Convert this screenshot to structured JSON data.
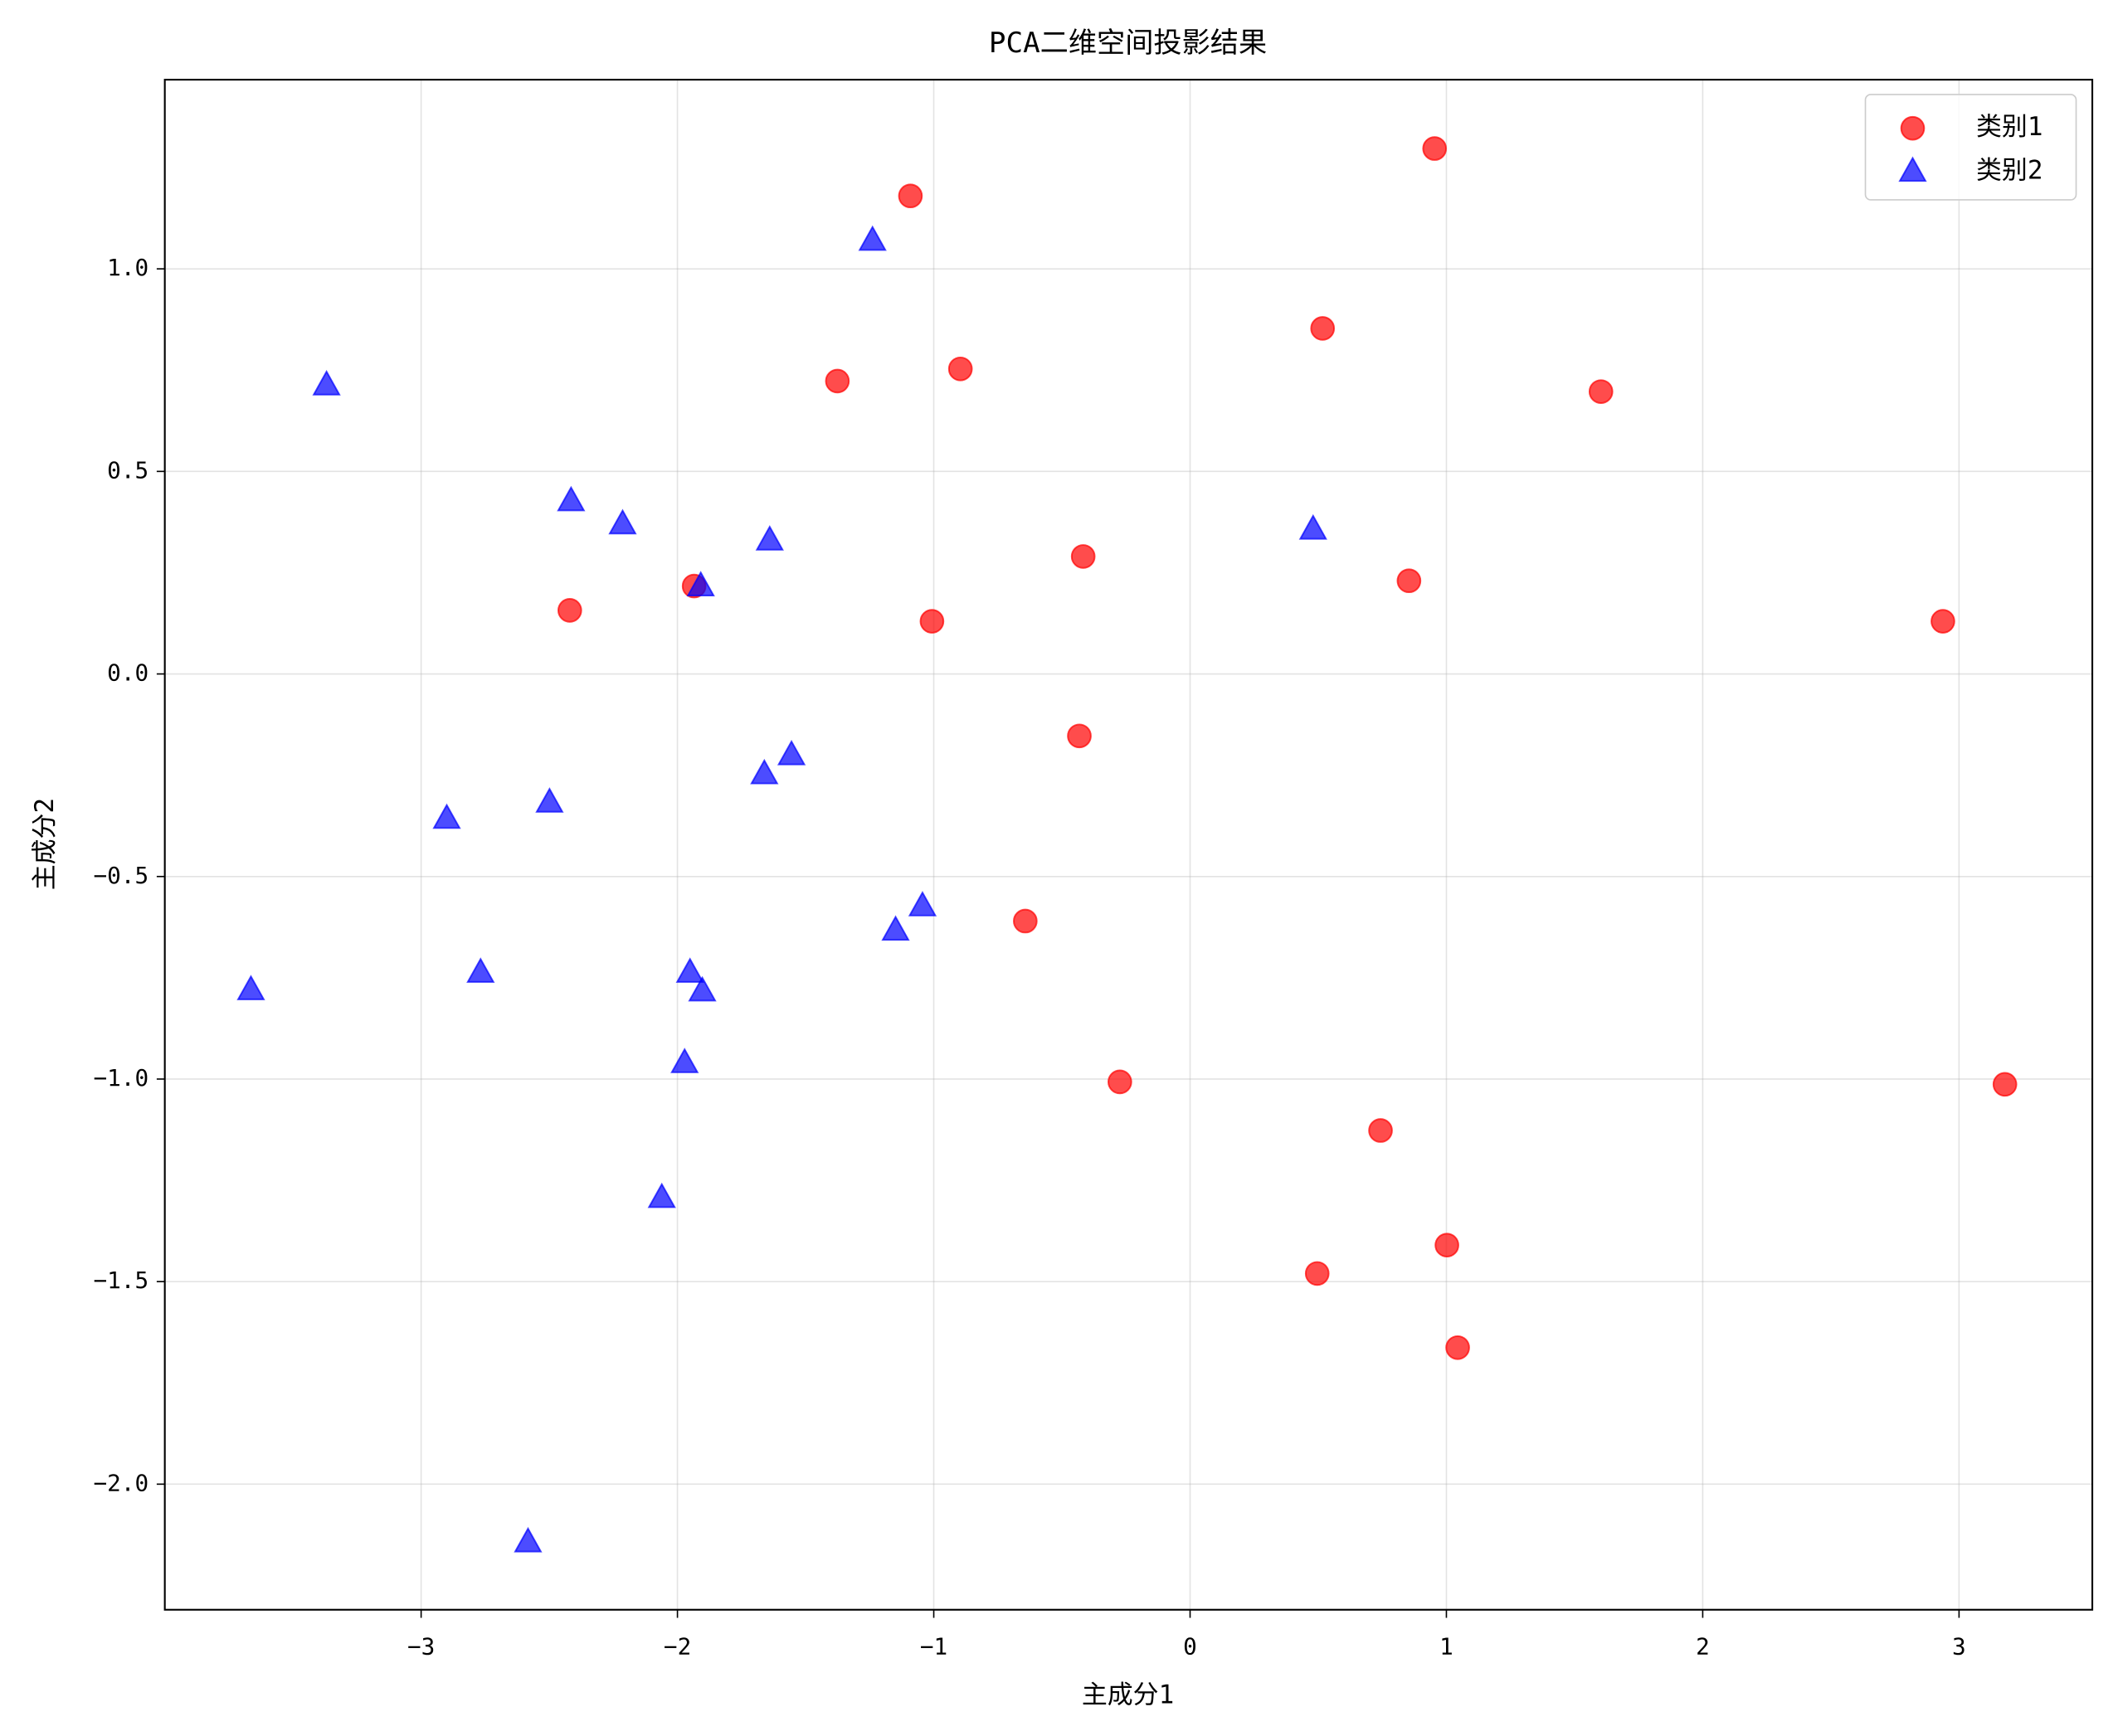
{
  "chart_data": {
    "type": "scatter",
    "title": "PCA二维空间投影结果",
    "x_label": "主成分1",
    "y_label": "主成分2",
    "xlim": [
      -4.0,
      3.52
    ],
    "ylim": [
      -2.31,
      1.467
    ],
    "xticks": [
      {
        "value": -3,
        "label": "−3"
      },
      {
        "value": -2,
        "label": "−2"
      },
      {
        "value": -1,
        "label": "−1"
      },
      0,
      1,
      2,
      3
    ],
    "yticks": [
      {
        "value": -2.0,
        "label": "−2.0"
      },
      {
        "value": -1.5,
        "label": "−1.5"
      },
      {
        "value": -1.0,
        "label": "−1.0"
      },
      {
        "value": -0.5,
        "label": "−0.5"
      },
      {
        "value": 0.0,
        "label": "0.0"
      },
      0.5,
      {
        "value": 1.0,
        "label": "1.0"
      }
    ],
    "grid": true,
    "legend": "upper right",
    "series": [
      {
        "name": "类别1",
        "color": "#ff0000",
        "marker": "circle",
        "x": [
          0.954,
          -1.091,
          0.517,
          -1.376,
          -0.896,
          1.603,
          -0.417,
          0.854,
          -2.42,
          -1.935,
          -1.007,
          2.937,
          -0.432,
          -0.643,
          -0.274,
          3.179,
          0.743,
          1.002,
          0.496,
          1.044
        ],
        "values": [
          1.297,
          1.18,
          0.853,
          0.723,
          0.753,
          0.697,
          0.29,
          0.23,
          0.157,
          0.217,
          0.13,
          0.13,
          -0.153,
          -0.61,
          -1.007,
          -1.013,
          -1.127,
          -1.41,
          -1.48,
          -1.663
        ]
      },
      {
        "name": "类别2",
        "color": "#0000ff",
        "marker": "triangle",
        "x": [
          -1.239,
          -3.369,
          -2.415,
          -2.214,
          -1.64,
          0.48,
          -1.909,
          -1.555,
          -1.661,
          -2.499,
          -2.9,
          -1.044,
          -1.149,
          -2.768,
          -1.951,
          -1.903,
          -3.664,
          -1.972,
          -2.061,
          -2.583
        ],
        "values": [
          1.07,
          0.713,
          0.427,
          0.37,
          0.33,
          0.357,
          0.217,
          -0.2,
          -0.247,
          -0.317,
          -0.357,
          -0.573,
          -0.633,
          -0.737,
          -0.737,
          -0.783,
          -0.78,
          -0.96,
          -1.293,
          -2.143
        ]
      }
    ]
  }
}
